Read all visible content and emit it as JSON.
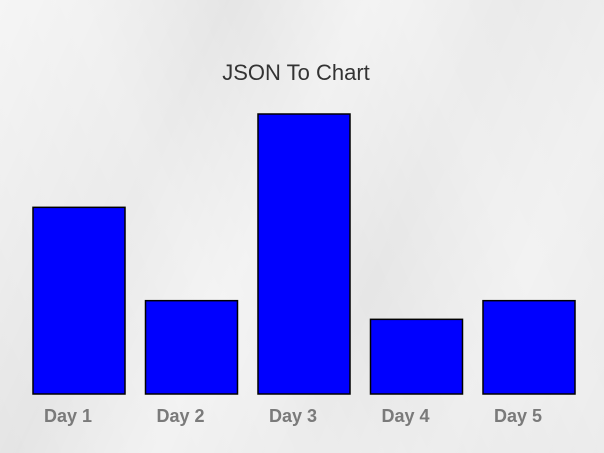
{
  "chart_data": {
    "type": "bar",
    "title": "JSON To Chart",
    "categories": [
      "Day 1",
      "Day 2",
      "Day 3",
      "Day 4",
      "Day 5"
    ],
    "values": [
      50,
      25,
      75,
      20,
      25
    ],
    "ylim": [
      0,
      75
    ],
    "xlabel": "",
    "ylabel": "",
    "grid": false,
    "legend": "none",
    "colors": {
      "bar": "#0000ff",
      "bar_edge": "#000000",
      "label": "#7a7a7a",
      "title": "#333333"
    }
  }
}
